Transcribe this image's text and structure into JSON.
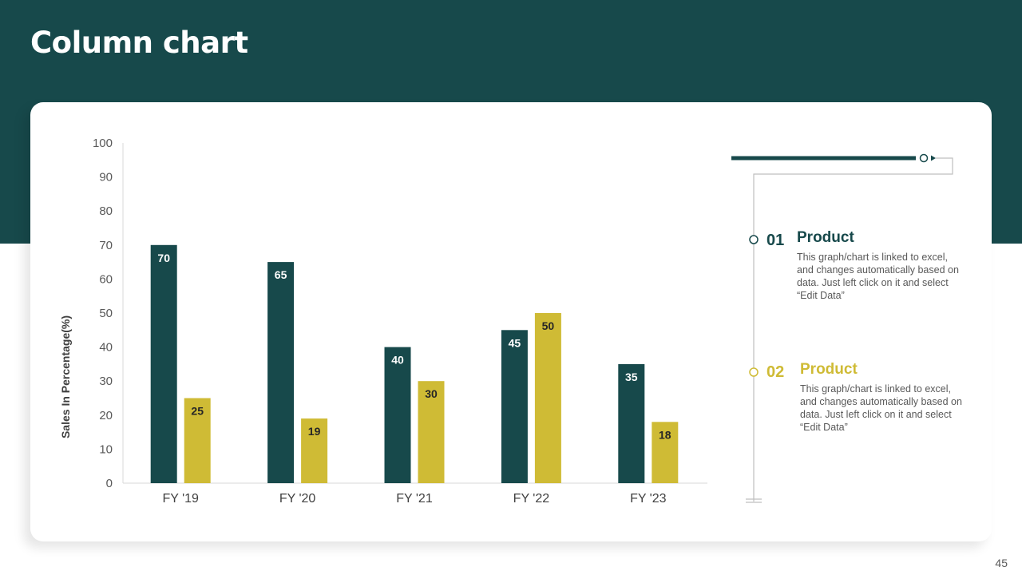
{
  "slide": {
    "title": "Column chart",
    "page_number": "45"
  },
  "colors": {
    "header": "#17494b",
    "series_1": "#17494b",
    "series_2": "#cfbb35",
    "axis_text": "#595959",
    "card": "#ffffff"
  },
  "chart_data": {
    "type": "bar",
    "title": "",
    "xlabel": "",
    "ylabel": "Sales In Percentage(%)",
    "ylim": [
      0,
      100
    ],
    "yticks": [
      0,
      10,
      20,
      30,
      40,
      50,
      60,
      70,
      80,
      90,
      100
    ],
    "categories": [
      "FY '19",
      "FY '20",
      "FY '21",
      "FY '22",
      "FY '23"
    ],
    "series": [
      {
        "values": [
          70,
          65,
          40,
          45,
          35
        ]
      },
      {
        "values": [
          25,
          19,
          30,
          50,
          18
        ]
      }
    ],
    "grid": false,
    "data_labels": true
  },
  "legend": [
    {
      "number": "01",
      "heading": "Product",
      "description": "This graph/chart is linked to excel, and changes automatically based on data. Just left click on it and select “Edit Data”"
    },
    {
      "number": "02",
      "heading": "Product",
      "description": "This graph/chart is linked to excel, and changes automatically based on data. Just left click on it and select “Edit Data”"
    }
  ]
}
